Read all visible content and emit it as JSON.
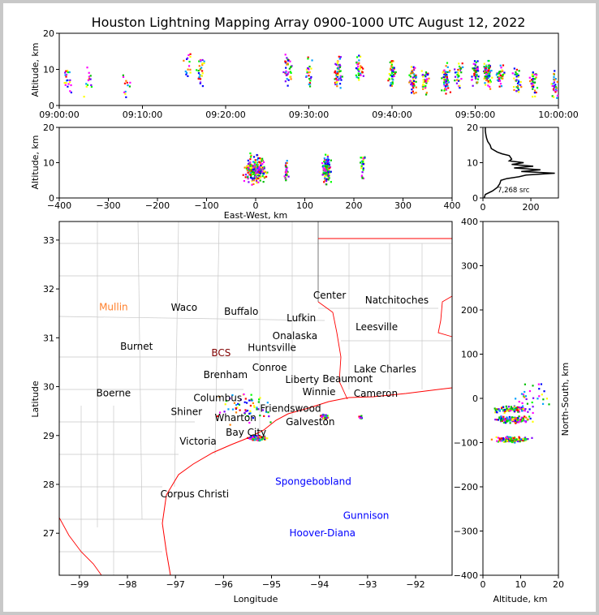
{
  "title": "Houston Lightning Mapping Array 0900-1000 UTC August 12, 2022",
  "colors": {
    "coast": "#ff0000",
    "county": "#c8c8c8",
    "reference_city": "#ff7f2a",
    "sensor": "#800000",
    "platform": "#0000ff"
  },
  "chart_data": [
    {
      "name": "altitude-vs-time",
      "type": "scatter",
      "ylabel": "Altitude, km",
      "xlim_minutes": [
        0,
        60
      ],
      "ylim": [
        0,
        20
      ],
      "xticks": [
        "09:00:00",
        "09:10:00",
        "09:20:00",
        "09:30:00",
        "09:40:00",
        "09:50:00",
        "10:00:00"
      ],
      "yticks": [
        "0",
        "10",
        "20"
      ],
      "clusters": [
        {
          "t": 1,
          "alt": 7,
          "n": 20
        },
        {
          "t": 3.5,
          "alt": 7,
          "n": 15
        },
        {
          "t": 8,
          "alt": 5,
          "n": 12
        },
        {
          "t": 15.5,
          "alt": 11,
          "n": 15
        },
        {
          "t": 17,
          "alt": 9,
          "n": 30
        },
        {
          "t": 27.5,
          "alt": 10,
          "n": 35
        },
        {
          "t": 30,
          "alt": 9,
          "n": 25
        },
        {
          "t": 33.5,
          "alt": 9,
          "n": 60
        },
        {
          "t": 36,
          "alt": 10,
          "n": 35
        },
        {
          "t": 40,
          "alt": 9,
          "n": 45
        },
        {
          "t": 42.5,
          "alt": 7,
          "n": 50
        },
        {
          "t": 44,
          "alt": 7,
          "n": 35
        },
        {
          "t": 46.5,
          "alt": 7,
          "n": 60
        },
        {
          "t": 48,
          "alt": 9,
          "n": 35
        },
        {
          "t": 50,
          "alt": 9,
          "n": 50
        },
        {
          "t": 51.5,
          "alt": 9,
          "n": 80
        },
        {
          "t": 53,
          "alt": 8,
          "n": 40
        },
        {
          "t": 55,
          "alt": 7,
          "n": 35
        },
        {
          "t": 57,
          "alt": 7,
          "n": 35
        },
        {
          "t": 59.5,
          "alt": 6,
          "n": 30
        }
      ]
    },
    {
      "name": "altitude-vs-east-west",
      "type": "scatter",
      "xlabel": "East-West, km",
      "ylabel": "Altitude, km",
      "xlim": [
        -400,
        400
      ],
      "ylim": [
        0,
        20
      ],
      "xticks": [
        "−400",
        "−300",
        "−200",
        "−100",
        "0",
        "100",
        "200",
        "300",
        "400"
      ],
      "yticks": [
        "0",
        "10",
        "20"
      ],
      "clusters": [
        {
          "x": 0,
          "sx": 14,
          "alt": 8,
          "n": 260
        },
        {
          "x": 62,
          "sx": 3,
          "alt": 8,
          "n": 30
        },
        {
          "x": 145,
          "sx": 5,
          "alt": 8,
          "n": 160
        },
        {
          "x": 218,
          "sx": 3,
          "alt": 9,
          "n": 30
        }
      ]
    },
    {
      "name": "altitude-histogram",
      "type": "line",
      "xlim": [
        0,
        315
      ],
      "ylim": [
        0,
        20
      ],
      "xticks": [
        "0",
        "200"
      ],
      "yticks": [
        "0",
        "5",
        "10",
        "15",
        "20"
      ],
      "annotation": "7,268 src",
      "alt": [
        0,
        1,
        2,
        3,
        4,
        5,
        5.5,
        6,
        6.5,
        7,
        7.5,
        8,
        8.5,
        9,
        9.5,
        10,
        10.5,
        11,
        11.5,
        12,
        12.5,
        13,
        14,
        15,
        16,
        17,
        18,
        19,
        20
      ],
      "count": [
        5,
        10,
        40,
        60,
        70,
        75,
        100,
        150,
        180,
        300,
        160,
        240,
        130,
        210,
        120,
        170,
        110,
        120,
        115,
        110,
        80,
        60,
        35,
        30,
        20,
        15,
        12,
        10,
        10
      ]
    },
    {
      "name": "plan-view-map",
      "type": "scatter",
      "xlabel": "Longitude",
      "ylabel": "Latitude",
      "xlim": [
        -99.42,
        -91.24
      ],
      "ylim": [
        26.14,
        33.38
      ],
      "xticks": [
        "−99",
        "−98",
        "−97",
        "−96",
        "−95",
        "−94",
        "−93",
        "−92"
      ],
      "yticks": [
        "27",
        "28",
        "29",
        "30",
        "31",
        "32",
        "33"
      ],
      "clusters": [
        {
          "lon": -95.3,
          "lat": 28.95,
          "slon": 0.12,
          "slat": 0.03,
          "n": 120
        },
        {
          "lon": -93.9,
          "lat": 29.38,
          "slon": 0.05,
          "slat": 0.03,
          "n": 70
        },
        {
          "lon": -93.15,
          "lat": 29.38,
          "slon": 0.02,
          "slat": 0.02,
          "n": 12
        },
        {
          "lon": -95.55,
          "lat": 29.6,
          "slon": 0.35,
          "slat": 0.25,
          "n": 60
        }
      ],
      "cities": [
        {
          "name": "Mullin",
          "lon": -98.29,
          "lat": 31.63,
          "kind": "reference_city"
        },
        {
          "name": "Waco",
          "lon": -96.82,
          "lat": 31.62
        },
        {
          "name": "Buffalo",
          "lon": -95.63,
          "lat": 31.54
        },
        {
          "name": "Lufkin",
          "lon": -94.38,
          "lat": 31.4
        },
        {
          "name": "Center",
          "lon": -93.79,
          "lat": 31.87
        },
        {
          "name": "Natchitoches",
          "lon": -92.39,
          "lat": 31.77
        },
        {
          "name": "Leesville",
          "lon": -92.81,
          "lat": 31.22
        },
        {
          "name": "Burnet",
          "lon": -97.81,
          "lat": 30.82
        },
        {
          "name": "BCS",
          "lon": -96.05,
          "lat": 30.69,
          "kind": "sensor"
        },
        {
          "name": "Huntsville",
          "lon": -94.99,
          "lat": 30.8
        },
        {
          "name": "Onalaska",
          "lon": -94.58,
          "lat": 30.87
        },
        {
          "name": "Conroe",
          "lon": -95.04,
          "lat": 30.39
        },
        {
          "name": "Brenham",
          "lon": -95.89,
          "lat": 30.24
        },
        {
          "name": "Lake Charles",
          "lon": -92.5,
          "lat": 30.29
        },
        {
          "name": "Liberty",
          "lon": -94.36,
          "lat": 30.14
        },
        {
          "name": "Beaumont",
          "lon": -93.55,
          "lat": 30.16
        },
        {
          "name": "Winnie",
          "lon": -94.01,
          "lat": 29.89
        },
        {
          "name": "Cameron",
          "lon": -92.83,
          "lat": 29.86
        },
        {
          "name": "Boerne",
          "lon": -98.29,
          "lat": 29.87
        },
        {
          "name": "Columbus",
          "lon": -96.12,
          "lat": 29.77
        },
        {
          "name": "Shiner",
          "lon": -96.77,
          "lat": 29.49
        },
        {
          "name": "Wharton",
          "lon": -95.75,
          "lat": 29.36
        },
        {
          "name": "Friendswood",
          "lon": -94.57,
          "lat": 29.57
        },
        {
          "name": "Galveston",
          "lon": -94.26,
          "lat": 29.36
        },
        {
          "name": "Bay City",
          "lon": -95.53,
          "lat": 29.06
        },
        {
          "name": "Victoria",
          "lon": -96.53,
          "lat": 28.88
        },
        {
          "name": "Corpus Christi",
          "lon": -96.6,
          "lat": 27.8
        },
        {
          "name": "Spongebobland",
          "lon": -94.13,
          "lat": 28.06,
          "kind": "platform"
        },
        {
          "name": "Gunnison",
          "lon": -93.03,
          "lat": 27.36,
          "kind": "platform"
        },
        {
          "name": "Hoover-Diana",
          "lon": -93.94,
          "lat": 27.0,
          "kind": "platform"
        }
      ]
    },
    {
      "name": "north-south-vs-altitude",
      "type": "scatter",
      "xlabel": "Altitude, km",
      "ylabel": "North-South, km",
      "xlim": [
        0,
        20
      ],
      "ylim": [
        -400,
        400
      ],
      "xticks": [
        "0",
        "10",
        "20"
      ],
      "yticks": [
        "−400",
        "−300",
        "−200",
        "−100",
        "0",
        "100",
        "200",
        "300",
        "400"
      ],
      "clusters": [
        {
          "alt": 8,
          "y": -25,
          "sy": 5,
          "n": 100
        },
        {
          "alt": 8,
          "y": -48,
          "sy": 5,
          "n": 140
        },
        {
          "alt": 8,
          "y": -93,
          "sy": 4,
          "n": 140
        },
        {
          "alt": 13,
          "y": 0,
          "sy": 25,
          "n": 30
        }
      ]
    }
  ]
}
